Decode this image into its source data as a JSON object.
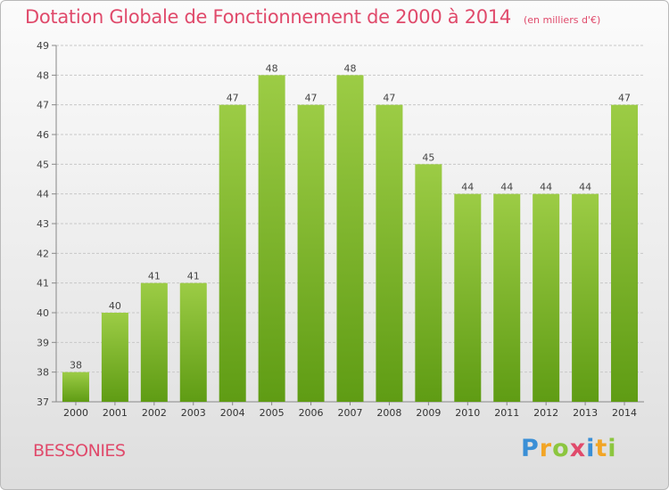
{
  "title": "Dotation Globale de Fonctionnement de 2000 à 2014",
  "subtitle": "(en milliers d'€)",
  "commune": "BESSONIES",
  "logo": {
    "text": "Proxiti",
    "letters": [
      "P",
      "r",
      "o",
      "x",
      "i",
      "t",
      "i"
    ]
  },
  "colors": {
    "accent": "#e04a6b",
    "bar_light": "#9ccc45",
    "bar_dark": "#5f9c14",
    "grid": "#c8c8c8"
  },
  "chart_data": {
    "type": "bar",
    "title": "Dotation Globale de Fonctionnement de 2000 à 2014",
    "subtitle": "(en milliers d'€)",
    "categories": [
      "2000",
      "2001",
      "2002",
      "2003",
      "2004",
      "2005",
      "2006",
      "2007",
      "2008",
      "2009",
      "2010",
      "2011",
      "2012",
      "2013",
      "2014"
    ],
    "values": [
      38,
      40,
      41,
      41,
      47,
      48,
      47,
      48,
      47,
      45,
      44,
      44,
      44,
      44,
      47
    ],
    "ylim": [
      37,
      49
    ],
    "yticks": [
      37,
      38,
      39,
      40,
      41,
      42,
      43,
      44,
      45,
      46,
      47,
      48,
      49
    ],
    "grid": true,
    "data_labels": true
  }
}
